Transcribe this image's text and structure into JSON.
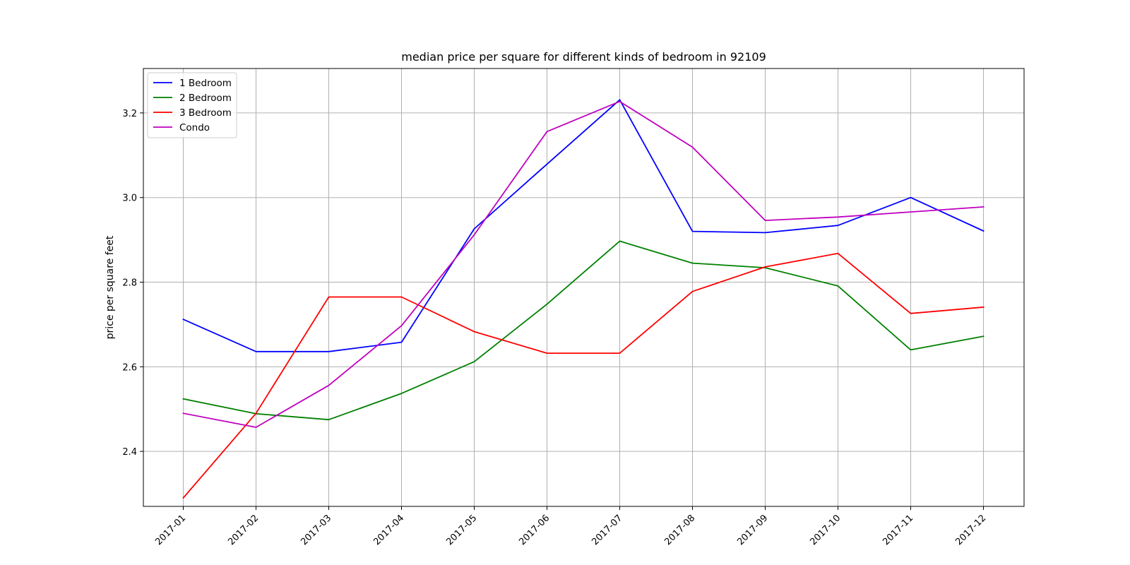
{
  "chart_data": {
    "type": "line",
    "title": "median price per square for different kinds of bedroom in 92109",
    "xlabel": "",
    "ylabel": "price per square feet",
    "categories": [
      "2017-01",
      "2017-02",
      "2017-03",
      "2017-04",
      "2017-05",
      "2017-06",
      "2017-07",
      "2017-08",
      "2017-09",
      "2017-10",
      "2017-11",
      "2017-12"
    ],
    "ylim": [
      2.27,
      3.305
    ],
    "yticks": [
      "2.4",
      "2.6",
      "2.8",
      "3.0",
      "3.2"
    ],
    "grid": true,
    "legend_position": "top-left",
    "series": [
      {
        "name": "1 Bedroom",
        "color": "#0000ff",
        "values": [
          2.712,
          2.636,
          2.636,
          2.658,
          2.926,
          3.079,
          3.231,
          2.92,
          2.917,
          2.934,
          3.0,
          2.921
        ]
      },
      {
        "name": "2 Bedroom",
        "color": "#008000",
        "values": [
          2.524,
          2.489,
          2.475,
          2.537,
          2.612,
          2.748,
          2.897,
          2.845,
          2.834,
          2.791,
          2.64,
          2.672
        ]
      },
      {
        "name": "3 Bedroom",
        "color": "#ff0000",
        "values": [
          2.29,
          2.49,
          2.765,
          2.765,
          2.683,
          2.632,
          2.632,
          2.778,
          2.836,
          2.868,
          2.726,
          2.741
        ]
      },
      {
        "name": "Condo",
        "color": "#bf00bf",
        "values": [
          2.49,
          2.457,
          2.556,
          2.697,
          2.912,
          3.156,
          3.227,
          3.119,
          2.946,
          2.954,
          2.966,
          2.978
        ]
      }
    ]
  }
}
